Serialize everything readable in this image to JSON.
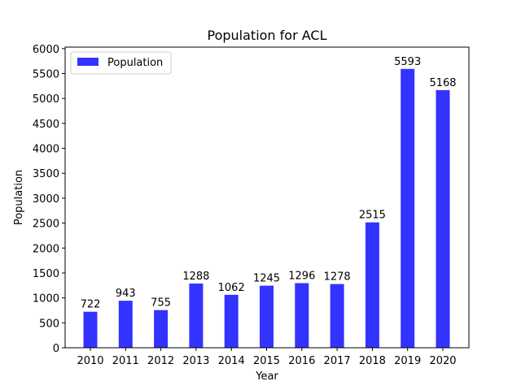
{
  "chart_data": {
    "type": "bar",
    "title": "Population for ACL",
    "xlabel": "Year",
    "ylabel": "Population",
    "categories": [
      "2010",
      "2011",
      "2012",
      "2013",
      "2014",
      "2015",
      "2016",
      "2017",
      "2018",
      "2019",
      "2020"
    ],
    "series": [
      {
        "name": "Population",
        "values": [
          722,
          943,
          755,
          1288,
          1062,
          1245,
          1296,
          1278,
          2515,
          5593,
          5168
        ],
        "color": "#3333ff"
      }
    ],
    "ylim": [
      0,
      6000
    ],
    "yticks": [
      0,
      500,
      1000,
      1500,
      2000,
      2500,
      3000,
      3500,
      4000,
      4500,
      5000,
      5500,
      6000
    ],
    "grid": false,
    "legend_position": "upper-left"
  }
}
